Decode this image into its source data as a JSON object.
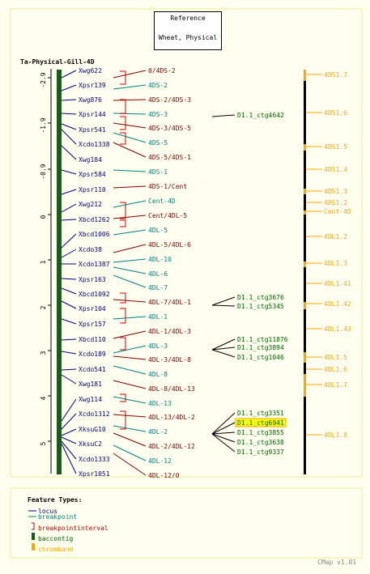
{
  "reference": {
    "line1": "Reference",
    "line2": "Wheat, Physical"
  },
  "map_title": "Ta-Physical-Gill-4D",
  "colors": {
    "background": "#fffff0",
    "panel_border": "#eeee99",
    "locus": "#000080",
    "breakpoint": "#008080",
    "breakpointinterval": "#cc0000",
    "interval_label": "#800000",
    "baccontig": "#1a5c1a",
    "contig_label": "#006400",
    "chromband": "#ffa500",
    "highlight": "#ffff00"
  },
  "scale_ticks": [
    "-2.9",
    "-1.9",
    "-0.9",
    "0",
    "1",
    "2",
    "3",
    "4",
    "5"
  ],
  "loci": [
    "Xwg622",
    "Xpsr139",
    "Xwg876",
    "Xpsr144",
    "Xpsr541",
    "Xcdo1338",
    "Xwg184",
    "Xpsr584",
    "Xpsr110",
    "Xwg212",
    "Xbcd1262",
    "Xbcd1006",
    "Xcdo38",
    "Xcdo1387",
    "Xpsr163",
    "Xbcd1092",
    "Xpsr104",
    "Xpsr157",
    "Xbcd110",
    "Xcdo189",
    "Xcdo541",
    "Xwg181",
    "Xwg114",
    "Xcdo1312",
    "XksuG10",
    "XksuC2",
    "Xcdo1333",
    "Xpsr1051"
  ],
  "breakpoints": [
    {
      "label": "0/4DS-2",
      "type": "interval"
    },
    {
      "label": "4DS-2",
      "type": "breakpoint"
    },
    {
      "label": "4DS-2/4DS-3",
      "type": "interval"
    },
    {
      "label": "4DS-3",
      "type": "breakpoint"
    },
    {
      "label": "4DS-3/4DS-5",
      "type": "interval"
    },
    {
      "label": "4DS-5",
      "type": "breakpoint"
    },
    {
      "label": "4DS-5/4DS-1",
      "type": "interval"
    },
    {
      "label": "4DS-1",
      "type": "breakpoint"
    },
    {
      "label": "4DS-1/Cent",
      "type": "interval"
    },
    {
      "label": "Cent-4D",
      "type": "breakpoint"
    },
    {
      "label": "Cent/4DL-5",
      "type": "interval"
    },
    {
      "label": "4DL-5",
      "type": "breakpoint"
    },
    {
      "label": "4DL-5/4DL-6",
      "type": "interval"
    },
    {
      "label": "4DL-10",
      "type": "breakpoint"
    },
    {
      "label": "4DL-6",
      "type": "breakpoint"
    },
    {
      "label": "4DL-7",
      "type": "breakpoint"
    },
    {
      "label": "4DL-7/4DL-1",
      "type": "interval"
    },
    {
      "label": "4DL-1",
      "type": "breakpoint"
    },
    {
      "label": "4DL-1/4DL-3",
      "type": "interval"
    },
    {
      "label": "4DL-3",
      "type": "breakpoint"
    },
    {
      "label": "4DL-3/4DL-8",
      "type": "interval"
    },
    {
      "label": "4DL-8",
      "type": "breakpoint"
    },
    {
      "label": "4DL-8/4DL-13",
      "type": "interval"
    },
    {
      "label": "4DL-13",
      "type": "breakpoint"
    },
    {
      "label": "4DL-13/4DL-2",
      "type": "interval"
    },
    {
      "label": "4DL-2",
      "type": "breakpoint"
    },
    {
      "label": "4DL-2/4DL-12",
      "type": "interval"
    },
    {
      "label": "4DL-12",
      "type": "breakpoint"
    },
    {
      "label": "4DL-12/0",
      "type": "interval"
    }
  ],
  "contigs": [
    "D1.1_ctg4642",
    "D1.1_ctg3676",
    "D1.1_ctg5345",
    "D1.1_ctg11876",
    "D1.1_ctg3894",
    "D1.1_ctg1046",
    "D1.1_ctg3351",
    "D1.1_ctg6941",
    "D1.1_ctg3855",
    "D1.1_ctg3638",
    "D1.1_ctg9337"
  ],
  "highlighted_contig": "D1.1_ctg6941",
  "bands": [
    "4DS1.7",
    "4DS1.6",
    "4DS1.5",
    "4DS1.4",
    "4DS1.3",
    "4DS1.2",
    "Cent-4D",
    "4DL1.2",
    "4DL1.3",
    "4DL1.41",
    "4DL1.42",
    "4DL1.43",
    "4DL1.5",
    "4DL1.6",
    "4DL1.7",
    "4DL1.8"
  ],
  "legend": {
    "title": "Feature Types:",
    "items": [
      "locus",
      "breakpoint",
      "breakpointinterval",
      "baccontig",
      "chromband"
    ]
  },
  "footer": "CMap v1.01"
}
